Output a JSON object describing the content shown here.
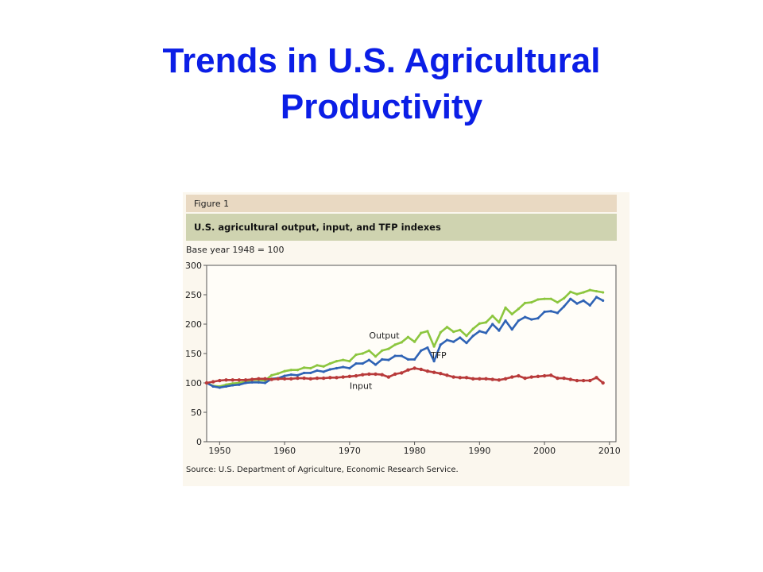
{
  "slide": {
    "title_line1": "Trends in U.S. Agricultural",
    "title_line2": "Productivity",
    "title_color": "#0b1ee6"
  },
  "figure": {
    "label": "Figure 1",
    "caption": "U.S. agricultural output, input, and TFP indexes",
    "base_year_note": "Base year 1948 = 100",
    "source": "Source: U.S. Department of Agriculture, Economic Research Service."
  },
  "chart_data": {
    "type": "line",
    "title": "U.S. agricultural output, input, and TFP indexes",
    "xlabel": "",
    "ylabel": "Base year 1948 = 100",
    "xlim": [
      1948,
      2011
    ],
    "ylim": [
      0,
      300
    ],
    "yticks": [
      0,
      50,
      100,
      150,
      200,
      250,
      300
    ],
    "xticks": [
      1950,
      1960,
      1970,
      1980,
      1990,
      2000,
      2010
    ],
    "grid": false,
    "legend": "inline labels",
    "x": [
      1948,
      1949,
      1950,
      1951,
      1952,
      1953,
      1954,
      1955,
      1956,
      1957,
      1958,
      1959,
      1960,
      1961,
      1962,
      1963,
      1964,
      1965,
      1966,
      1967,
      1968,
      1969,
      1970,
      1971,
      1972,
      1973,
      1974,
      1975,
      1976,
      1977,
      1978,
      1979,
      1980,
      1981,
      1982,
      1983,
      1984,
      1985,
      1986,
      1987,
      1988,
      1989,
      1990,
      1991,
      1992,
      1993,
      1994,
      1995,
      1996,
      1997,
      1998,
      1999,
      2000,
      2001,
      2002,
      2003,
      2004,
      2005,
      2006,
      2007,
      2008,
      2009
    ],
    "series": [
      {
        "name": "Output",
        "color": "#8cc63f",
        "values": [
          100,
          95,
          94,
          97,
          99,
          100,
          102,
          105,
          105,
          104,
          113,
          116,
          120,
          122,
          122,
          126,
          125,
          130,
          128,
          133,
          137,
          139,
          137,
          148,
          150,
          155,
          145,
          155,
          158,
          165,
          169,
          178,
          170,
          185,
          188,
          162,
          186,
          195,
          187,
          190,
          180,
          192,
          201,
          203,
          214,
          203,
          228,
          217,
          226,
          236,
          237,
          242,
          243,
          243,
          237,
          244,
          255,
          251,
          254,
          258,
          256,
          254
        ],
        "label_anchor_x": 1973,
        "label_anchor_y": 176
      },
      {
        "name": "TFP",
        "color": "#2f63b5",
        "values": [
          100,
          94,
          92,
          94,
          96,
          97,
          100,
          101,
          101,
          100,
          107,
          108,
          112,
          114,
          113,
          117,
          117,
          121,
          119,
          123,
          125,
          127,
          125,
          133,
          133,
          139,
          131,
          140,
          139,
          146,
          146,
          140,
          140,
          155,
          160,
          137,
          165,
          173,
          170,
          177,
          168,
          180,
          188,
          185,
          200,
          189,
          206,
          191,
          206,
          212,
          208,
          210,
          221,
          222,
          219,
          230,
          243,
          235,
          240,
          232,
          246,
          240
        ],
        "label_anchor_x": 1982.5,
        "label_anchor_y": 142
      },
      {
        "name": "Input",
        "color": "#b83a3a",
        "values": [
          100,
          102,
          104,
          105,
          105,
          105,
          105,
          106,
          107,
          107,
          106,
          107,
          107,
          107,
          108,
          108,
          107,
          108,
          108,
          109,
          109,
          110,
          111,
          112,
          114,
          115,
          115,
          114,
          110,
          115,
          117,
          122,
          125,
          123,
          120,
          118,
          116,
          113,
          110,
          109,
          109,
          107,
          107,
          107,
          106,
          105,
          107,
          110,
          112,
          108,
          110,
          111,
          112,
          113,
          108,
          108,
          106,
          104,
          104,
          104,
          109,
          100
        ],
        "label_anchor_x": 1970,
        "label_anchor_y": 90
      }
    ]
  }
}
